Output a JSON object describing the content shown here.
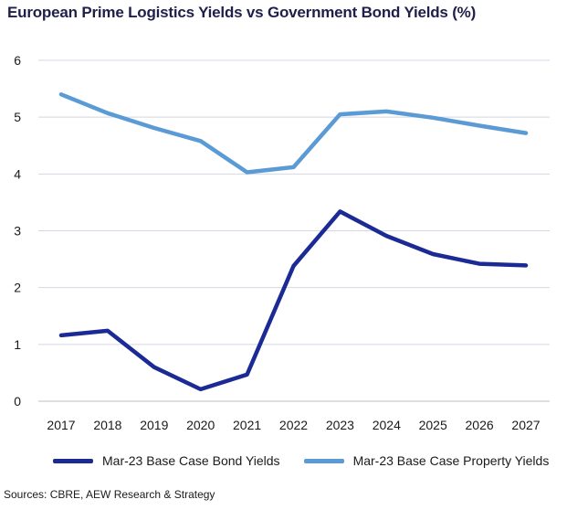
{
  "chart_data": {
    "type": "line",
    "title": "European Prime Logistics Yields vs Government Bond Yields (%)",
    "categories": [
      "2017",
      "2018",
      "2019",
      "2020",
      "2021",
      "2022",
      "2023",
      "2024",
      "2025",
      "2026",
      "2027"
    ],
    "ylim": [
      0,
      6
    ],
    "yticks": [
      0,
      1,
      2,
      3,
      4,
      5,
      6
    ],
    "grid": true,
    "legend_position": "bottom",
    "series": [
      {
        "name": "Mar-23 Base Case Bond Yields",
        "color": "#1c2a96",
        "values": [
          1.16,
          1.24,
          0.6,
          0.21,
          0.47,
          2.38,
          3.34,
          2.91,
          2.59,
          2.42,
          2.39
        ]
      },
      {
        "name": "Mar-23 Base Case Property Yields",
        "color": "#5b9bd5",
        "values": [
          5.4,
          5.07,
          4.81,
          4.58,
          4.03,
          4.12,
          5.05,
          5.1,
          4.99,
          4.85,
          4.72
        ]
      }
    ]
  },
  "source": "Sources: CBRE, AEW Research & Strategy"
}
